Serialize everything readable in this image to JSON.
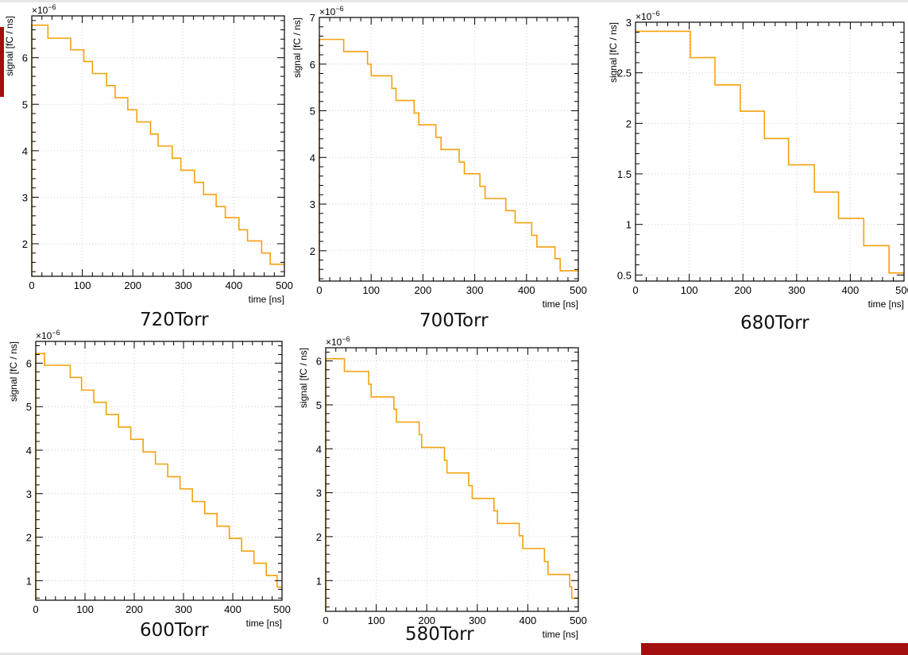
{
  "charts": [
    {
      "id": "720",
      "caption": "720Torr",
      "exponent_base": "×10",
      "exponent_power": "−6",
      "xlabel": "time [ns]",
      "ylabel": "signal [fC / ns]"
    },
    {
      "id": "700",
      "caption": "700Torr",
      "exponent_base": "×10",
      "exponent_power": "−6",
      "xlabel": "time [ns]",
      "ylabel": "signal [fC / ns]"
    },
    {
      "id": "680",
      "caption": "680Torr",
      "exponent_base": "×10",
      "exponent_power": "−6",
      "xlabel": "time [ns]",
      "ylabel": "signal [fC / ns]"
    },
    {
      "id": "600",
      "caption": "600Torr",
      "exponent_base": "×10",
      "exponent_power": "−6",
      "xlabel": "time [ns]",
      "ylabel": "signal [fC / ns]"
    },
    {
      "id": "580",
      "caption": "580Torr",
      "exponent_base": "×10",
      "exponent_power": "−6",
      "xlabel": "time [ns]",
      "ylabel": "signal [fC / ns]"
    }
  ],
  "chart_data": [
    {
      "type": "line",
      "series_color": "#f5a10f",
      "grid": true,
      "xlabel": "time [ns]",
      "ylabel": "signal [fC / ns]",
      "xlim": [
        0,
        500
      ],
      "ylim": [
        1.3,
        6.9
      ],
      "xticks": [
        0,
        100,
        200,
        300,
        400,
        500
      ],
      "xtick_labels": [
        "0",
        "100",
        "200",
        "300",
        "400",
        "500"
      ],
      "yticks": [
        2,
        3,
        4,
        5,
        6
      ],
      "ytick_labels": [
        "2",
        "3",
        "4",
        "5",
        "6"
      ],
      "steps": [
        {
          "x": 0,
          "y": 1.3
        },
        {
          "x": 0,
          "y": 6.7
        },
        {
          "x": 32,
          "y": 6.42
        },
        {
          "x": 77,
          "y": 6.17
        },
        {
          "x": 103,
          "y": 5.92
        },
        {
          "x": 120,
          "y": 5.66
        },
        {
          "x": 148,
          "y": 5.4
        },
        {
          "x": 165,
          "y": 5.14
        },
        {
          "x": 190,
          "y": 4.88
        },
        {
          "x": 208,
          "y": 4.62
        },
        {
          "x": 235,
          "y": 4.36
        },
        {
          "x": 250,
          "y": 4.1
        },
        {
          "x": 278,
          "y": 3.84
        },
        {
          "x": 295,
          "y": 3.58
        },
        {
          "x": 322,
          "y": 3.32
        },
        {
          "x": 340,
          "y": 3.06
        },
        {
          "x": 365,
          "y": 2.8
        },
        {
          "x": 383,
          "y": 2.56
        },
        {
          "x": 410,
          "y": 2.3
        },
        {
          "x": 427,
          "y": 2.06
        },
        {
          "x": 455,
          "y": 1.8
        },
        {
          "x": 472,
          "y": 1.56
        }
      ]
    },
    {
      "type": "line",
      "series_color": "#f5a10f",
      "grid": true,
      "xlabel": "time [ns]",
      "ylabel": "signal [fC / ns]",
      "xlim": [
        0,
        500
      ],
      "ylim": [
        1.35,
        7.0
      ],
      "xticks": [
        0,
        100,
        200,
        300,
        400,
        500
      ],
      "xtick_labels": [
        "0",
        "100",
        "200",
        "300",
        "400",
        "500"
      ],
      "yticks": [
        2,
        3,
        4,
        5,
        6,
        7
      ],
      "ytick_labels": [
        "2",
        "3",
        "4",
        "5",
        "6",
        "7"
      ],
      "steps": [
        {
          "x": 0,
          "y": 1.35
        },
        {
          "x": 0,
          "y": 6.53
        },
        {
          "x": 47,
          "y": 6.27
        },
        {
          "x": 93,
          "y": 6.0
        },
        {
          "x": 100,
          "y": 5.75
        },
        {
          "x": 140,
          "y": 5.48
        },
        {
          "x": 148,
          "y": 5.22
        },
        {
          "x": 183,
          "y": 4.95
        },
        {
          "x": 192,
          "y": 4.7
        },
        {
          "x": 225,
          "y": 4.43
        },
        {
          "x": 235,
          "y": 4.17
        },
        {
          "x": 270,
          "y": 3.9
        },
        {
          "x": 280,
          "y": 3.65
        },
        {
          "x": 310,
          "y": 3.38
        },
        {
          "x": 320,
          "y": 3.12
        },
        {
          "x": 360,
          "y": 2.86
        },
        {
          "x": 378,
          "y": 2.6
        },
        {
          "x": 410,
          "y": 2.33
        },
        {
          "x": 420,
          "y": 2.08
        },
        {
          "x": 455,
          "y": 1.83
        },
        {
          "x": 465,
          "y": 1.57
        }
      ]
    },
    {
      "type": "line",
      "series_color": "#f5a10f",
      "grid": true,
      "xlabel": "time [ns]",
      "ylabel": "signal [fC / ns]",
      "xlim": [
        0,
        500
      ],
      "ylim": [
        0.44,
        3.0
      ],
      "xticks": [
        0,
        100,
        200,
        300,
        400,
        500
      ],
      "xtick_labels": [
        "0",
        "100",
        "200",
        "300",
        "400",
        "500"
      ],
      "yticks": [
        0.5,
        1,
        1.5,
        2,
        2.5,
        3
      ],
      "ytick_labels": [
        "0.5",
        "1",
        "1.5",
        "2",
        "2.5",
        "3"
      ],
      "steps": [
        {
          "x": 0,
          "y": 2.91
        },
        {
          "x": 102,
          "y": 2.65
        },
        {
          "x": 148,
          "y": 2.38
        },
        {
          "x": 195,
          "y": 2.12
        },
        {
          "x": 240,
          "y": 1.85
        },
        {
          "x": 285,
          "y": 1.59
        },
        {
          "x": 333,
          "y": 1.32
        },
        {
          "x": 378,
          "y": 1.06
        },
        {
          "x": 425,
          "y": 0.79
        },
        {
          "x": 472,
          "y": 0.52
        }
      ]
    },
    {
      "type": "line",
      "series_color": "#f5a10f",
      "grid": true,
      "xlabel": "time [ns]",
      "ylabel": "signal [fC / ns]",
      "xlim": [
        0,
        500
      ],
      "ylim": [
        0.55,
        6.5
      ],
      "xticks": [
        0,
        100,
        200,
        300,
        400,
        500
      ],
      "xtick_labels": [
        "0",
        "100",
        "200",
        "300",
        "400",
        "500"
      ],
      "yticks": [
        1,
        2,
        3,
        4,
        5,
        6
      ],
      "ytick_labels": [
        "1",
        "2",
        "3",
        "4",
        "5",
        "6"
      ],
      "steps": [
        {
          "x": 0,
          "y": 0.55
        },
        {
          "x": 0,
          "y": 6.22
        },
        {
          "x": 18,
          "y": 5.95
        },
        {
          "x": 70,
          "y": 5.67
        },
        {
          "x": 93,
          "y": 5.38
        },
        {
          "x": 118,
          "y": 5.1
        },
        {
          "x": 143,
          "y": 4.82
        },
        {
          "x": 168,
          "y": 4.53
        },
        {
          "x": 193,
          "y": 4.25
        },
        {
          "x": 218,
          "y": 3.96
        },
        {
          "x": 243,
          "y": 3.68
        },
        {
          "x": 268,
          "y": 3.39
        },
        {
          "x": 293,
          "y": 3.11
        },
        {
          "x": 318,
          "y": 2.82
        },
        {
          "x": 343,
          "y": 2.54
        },
        {
          "x": 368,
          "y": 2.25
        },
        {
          "x": 393,
          "y": 1.97
        },
        {
          "x": 418,
          "y": 1.68
        },
        {
          "x": 443,
          "y": 1.4
        },
        {
          "x": 468,
          "y": 1.12
        },
        {
          "x": 490,
          "y": 0.85
        }
      ]
    },
    {
      "type": "line",
      "series_color": "#f5a10f",
      "grid": true,
      "xlabel": "time [ns]",
      "ylabel": "signal [fC / ns]",
      "xlim": [
        0,
        500
      ],
      "ylim": [
        0.3,
        6.3
      ],
      "xticks": [
        0,
        100,
        200,
        300,
        400,
        500
      ],
      "xtick_labels": [
        "0",
        "100",
        "200",
        "300",
        "400",
        "500"
      ],
      "yticks": [
        1,
        2,
        3,
        4,
        5,
        6
      ],
      "ytick_labels": [
        "1",
        "2",
        "3",
        "4",
        "5",
        "6"
      ],
      "steps": [
        {
          "x": 0,
          "y": 0.3
        },
        {
          "x": 0,
          "y": 6.05
        },
        {
          "x": 37,
          "y": 5.76
        },
        {
          "x": 85,
          "y": 5.47
        },
        {
          "x": 90,
          "y": 5.18
        },
        {
          "x": 135,
          "y": 4.9
        },
        {
          "x": 140,
          "y": 4.61
        },
        {
          "x": 185,
          "y": 4.32
        },
        {
          "x": 190,
          "y": 4.03
        },
        {
          "x": 235,
          "y": 3.74
        },
        {
          "x": 240,
          "y": 3.45
        },
        {
          "x": 283,
          "y": 3.16
        },
        {
          "x": 290,
          "y": 2.87
        },
        {
          "x": 333,
          "y": 2.59
        },
        {
          "x": 340,
          "y": 2.3
        },
        {
          "x": 383,
          "y": 2.02
        },
        {
          "x": 390,
          "y": 1.73
        },
        {
          "x": 433,
          "y": 1.43
        },
        {
          "x": 440,
          "y": 1.14
        },
        {
          "x": 483,
          "y": 0.86
        },
        {
          "x": 487,
          "y": 0.6
        }
      ]
    }
  ]
}
